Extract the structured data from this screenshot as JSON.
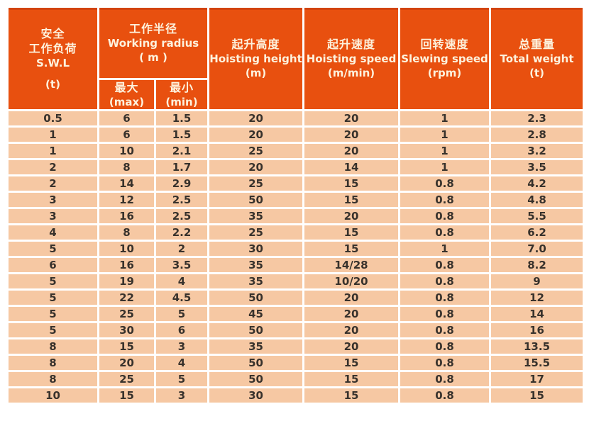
{
  "colors": {
    "page_bg": "#ffffff",
    "header_bg": "#e8500f",
    "header_top_edge": "#d34410",
    "header_text": "#fdf2dd",
    "row_bg": "#f6c8a3",
    "separator": "#ffffff",
    "body_text": "#38322c"
  },
  "table": {
    "headers": {
      "swl": {
        "zh_line1": "安全",
        "zh_line2": "工作负荷",
        "en": "S.W.L",
        "unit": "(t)"
      },
      "working_radius": {
        "zh": "工作半径",
        "en": "Working radius",
        "unit": "( m )"
      },
      "radius_max": {
        "zh": "最大",
        "en": "(max)"
      },
      "radius_min": {
        "zh": "最小",
        "en": "(min)"
      },
      "hoisting_height": {
        "zh": "起升高度",
        "en": "Hoisting height",
        "unit": "(m)"
      },
      "hoisting_speed": {
        "zh": "起升速度",
        "en": "Hoisting speed",
        "unit": "(m/min)"
      },
      "slewing_speed": {
        "zh": "回转速度",
        "en": "Slewing speed",
        "unit": "(rpm)"
      },
      "total_weight": {
        "zh": "总重量",
        "en": "Total weight",
        "unit": "(t)"
      }
    },
    "rows": [
      [
        "0.5",
        "6",
        "1.5",
        "20",
        "20",
        "1",
        "2.3"
      ],
      [
        "1",
        "6",
        "1.5",
        "20",
        "20",
        "1",
        "2.8"
      ],
      [
        "1",
        "10",
        "2.1",
        "25",
        "20",
        "1",
        "3.2"
      ],
      [
        "2",
        "8",
        "1.7",
        "20",
        "14",
        "1",
        "3.5"
      ],
      [
        "2",
        "14",
        "2.9",
        "25",
        "15",
        "0.8",
        "4.2"
      ],
      [
        "3",
        "12",
        "2.5",
        "50",
        "15",
        "0.8",
        "4.8"
      ],
      [
        "3",
        "16",
        "2.5",
        "35",
        "20",
        "0.8",
        "5.5"
      ],
      [
        "4",
        "8",
        "2.2",
        "25",
        "15",
        "0.8",
        "6.2"
      ],
      [
        "5",
        "10",
        "2",
        "30",
        "15",
        "1",
        "7.0"
      ],
      [
        "6",
        "16",
        "3.5",
        "35",
        "14/28",
        "0.8",
        "8.2"
      ],
      [
        "5",
        "19",
        "4",
        "35",
        "10/20",
        "0.8",
        "9"
      ],
      [
        "5",
        "22",
        "4.5",
        "50",
        "20",
        "0.8",
        "12"
      ],
      [
        "5",
        "25",
        "5",
        "45",
        "20",
        "0.8",
        "14"
      ],
      [
        "5",
        "30",
        "6",
        "50",
        "20",
        "0.8",
        "16"
      ],
      [
        "8",
        "15",
        "3",
        "35",
        "20",
        "0.8",
        "13.5"
      ],
      [
        "8",
        "20",
        "4",
        "50",
        "15",
        "0.8",
        "15.5"
      ],
      [
        "8",
        "25",
        "5",
        "50",
        "15",
        "0.8",
        "17"
      ],
      [
        "10",
        "15",
        "3",
        "30",
        "15",
        "0.8",
        "15"
      ]
    ]
  }
}
